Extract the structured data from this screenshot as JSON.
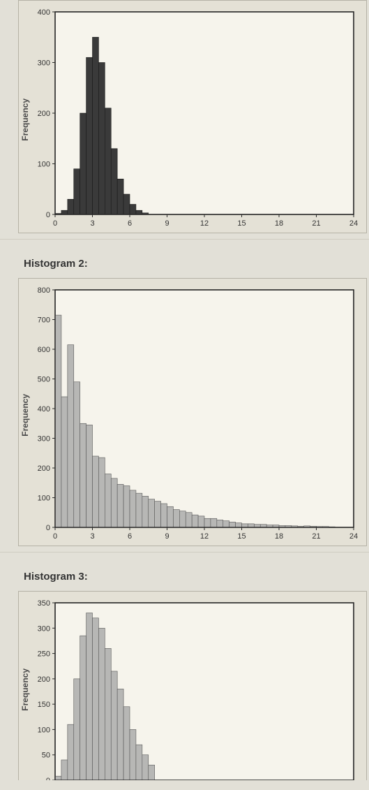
{
  "background_color": "#e2e0d7",
  "panel_bg": "#e6e3da",
  "panel_border": "#b5b2a6",
  "plot_bg": "#f6f4ec",
  "plot_border": "#2a2a2a",
  "axis_font_size": 11,
  "ylabel": "Frequency",
  "h1": {
    "type": "histogram",
    "bar_fill": "#3a3a3a",
    "bar_stroke": "#1a1a1a",
    "xlim": [
      0,
      24
    ],
    "xtick_step": 3,
    "ylim": [
      0,
      400
    ],
    "ytick_step": 100,
    "bin_width": 0.5,
    "bins_x": [
      0,
      0.5,
      1,
      1.5,
      2,
      2.5,
      3,
      3.5,
      4,
      4.5,
      5,
      5.5,
      6,
      6.5,
      7
    ],
    "bins_y": [
      2,
      8,
      30,
      90,
      200,
      310,
      350,
      300,
      210,
      130,
      70,
      40,
      20,
      8,
      3
    ]
  },
  "title2": "Histogram 2:",
  "h2": {
    "type": "histogram",
    "bar_fill": "#b7b7b5",
    "bar_stroke": "#585858",
    "xlim": [
      0,
      24
    ],
    "xtick_step": 3,
    "ylim": [
      0,
      800
    ],
    "ytick_step": 100,
    "bin_width": 0.5,
    "bins_x": [
      0,
      0.5,
      1,
      1.5,
      2,
      2.5,
      3,
      3.5,
      4,
      4.5,
      5,
      5.5,
      6,
      6.5,
      7,
      7.5,
      8,
      8.5,
      9,
      9.5,
      10,
      10.5,
      11,
      11.5,
      12,
      12.5,
      13,
      13.5,
      14,
      14.5,
      15,
      15.5,
      16,
      16.5,
      17,
      17.5,
      18,
      18.5,
      19,
      19.5,
      20,
      20.5,
      21,
      21.5,
      22
    ],
    "bins_y": [
      715,
      440,
      615,
      490,
      350,
      345,
      240,
      235,
      180,
      165,
      145,
      140,
      125,
      115,
      105,
      95,
      88,
      80,
      70,
      60,
      55,
      50,
      42,
      38,
      30,
      30,
      25,
      22,
      18,
      15,
      12,
      12,
      10,
      10,
      8,
      8,
      6,
      6,
      5,
      4,
      5,
      4,
      3,
      3,
      2
    ]
  },
  "title3": "Histogram 3:",
  "h3": {
    "type": "histogram",
    "bar_fill": "#b7b7b5",
    "bar_stroke": "#585858",
    "xlim": [
      0,
      24
    ],
    "xtick_step": 3,
    "ylim": [
      0,
      350
    ],
    "ytick_step": 50,
    "bin_width": 0.5,
    "bins_x": [
      0,
      0.5,
      1,
      1.5,
      2,
      2.5,
      3,
      3.5,
      4,
      4.5,
      5,
      5.5,
      6,
      6.5,
      7,
      7.5
    ],
    "bins_y": [
      8,
      40,
      110,
      200,
      285,
      330,
      320,
      300,
      260,
      215,
      180,
      145,
      100,
      70,
      50,
      30
    ]
  }
}
